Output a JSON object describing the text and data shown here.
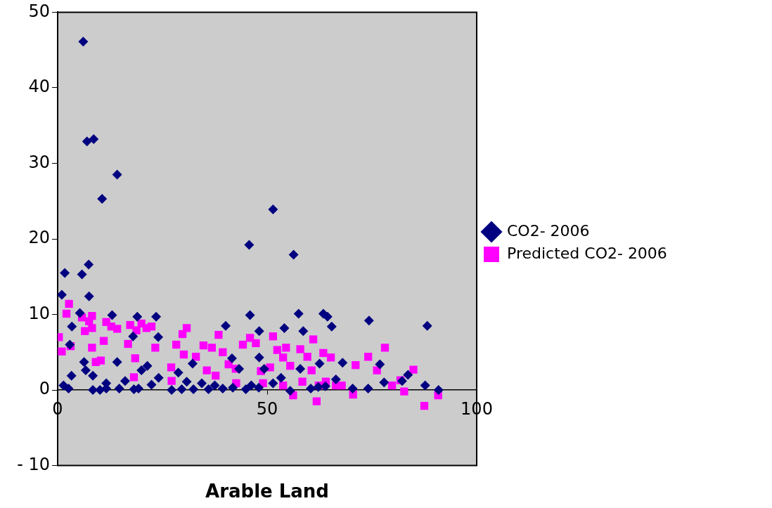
{
  "chart_data": {
    "type": "scatter",
    "xlabel": "Arable Land",
    "xlim": [
      0,
      100
    ],
    "xticks": [
      0,
      50,
      100
    ],
    "ylim": [
      -10,
      50
    ],
    "yticks": [
      -10,
      0,
      10,
      20,
      30,
      40,
      50
    ],
    "grid": false,
    "legend": "right",
    "series": [
      {
        "name": "CO2- 2006",
        "color": "#000080",
        "marker": "diamond",
        "x": [
          6.1,
          7.0,
          8.6,
          14.2,
          10.6,
          1.0,
          1.7,
          5.8,
          7.4,
          7.5,
          45.7,
          51.4,
          56.3,
          45.9,
          57.5,
          63.4,
          64.4,
          65.4,
          54.1,
          40.1,
          48.1,
          58.6,
          74.3,
          88.2,
          13.0,
          19.0,
          23.5,
          18.0,
          24.0,
          3.4,
          5.3,
          2.9,
          1.4,
          2.6,
          3.3,
          6.7,
          8.4,
          8.4,
          10.1,
          11.6,
          14.7,
          18.2,
          19.3,
          20.0,
          21.4,
          24.1,
          27.2,
          29.6,
          30.8,
          32.4,
          34.4,
          36.0,
          37.5,
          39.4,
          41.8,
          43.3,
          44.9,
          46.2,
          48.0,
          49.3,
          51.4,
          53.3,
          55.5,
          57.9,
          60.4,
          62.2,
          63.9,
          66.4,
          68.0,
          70.4,
          74.1,
          76.9,
          77.9,
          83.6,
          87.7,
          90.9,
          82.2,
          41.6,
          48.1,
          62.5,
          32.2,
          28.8,
          22.4,
          11.6,
          16.1,
          14.2,
          6.3
        ],
        "values": [
          46.1,
          32.9,
          33.2,
          28.5,
          25.3,
          12.6,
          15.5,
          15.3,
          16.6,
          12.4,
          19.2,
          23.9,
          17.9,
          9.9,
          10.1,
          10.1,
          9.7,
          8.4,
          8.2,
          8.5,
          7.8,
          7.8,
          9.2,
          8.5,
          9.9,
          9.7,
          9.7,
          7.1,
          7.0,
          8.4,
          10.2,
          6.0,
          0.6,
          0.2,
          1.9,
          2.6,
          1.9,
          0,
          0,
          0.2,
          0.2,
          0.1,
          0.2,
          2.6,
          3.2,
          1.6,
          0,
          0.1,
          1.1,
          0.1,
          0.9,
          0.1,
          0.6,
          0.2,
          0.3,
          2.8,
          0.1,
          0.6,
          0.3,
          2.8,
          0.9,
          1.6,
          -0.1,
          2.8,
          0.2,
          0.4,
          0.5,
          1.4,
          3.6,
          0.2,
          0.2,
          3.4,
          1.0,
          2.0,
          0.6,
          0.0,
          1.2,
          4.2,
          4.3,
          3.5,
          3.5,
          2.3,
          0.7,
          0.9,
          1.2,
          3.7,
          3.7
        ]
      },
      {
        "name": "Predicted CO2- 2006",
        "color": "#ff00ff",
        "marker": "square",
        "x": [
          0.3,
          1.0,
          2.1,
          2.7,
          3.1,
          5.8,
          6.5,
          7.5,
          8.2,
          8.2,
          8.2,
          9.1,
          10.3,
          11.0,
          11.6,
          12.8,
          14.2,
          16.8,
          17.3,
          18.5,
          18.8,
          20.0,
          21.2,
          22.4,
          23.3,
          18.2,
          27.1,
          27.2,
          28.3,
          29.8,
          30.8,
          30.1,
          33.0,
          34.8,
          35.6,
          36.8,
          38.4,
          39.4,
          40.8,
          42.5,
          44.2,
          45.9,
          47.3,
          48.5,
          50.7,
          51.4,
          52.4,
          53.8,
          54.5,
          55.5,
          56.2,
          57.9,
          59.6,
          60.6,
          61.0,
          61.8,
          63.4,
          64.0,
          65.2,
          66.4,
          67.8,
          70.5,
          71.1,
          74.1,
          76.2,
          78.1,
          79.8,
          81.8,
          82.7,
          84.9,
          87.5,
          90.8,
          58.4,
          62.3,
          53.8,
          49.0,
          42.6,
          37.7
        ],
        "values": [
          7.0,
          5.1,
          10.1,
          11.4,
          5.8,
          9.6,
          7.8,
          9.1,
          9.8,
          8.2,
          5.6,
          3.7,
          3.9,
          6.5,
          9.0,
          8.4,
          8.1,
          6.1,
          8.6,
          4.2,
          7.9,
          8.8,
          8.2,
          8.4,
          5.6,
          1.7,
          3.0,
          1.2,
          6.0,
          7.4,
          8.2,
          4.7,
          4.4,
          5.9,
          2.6,
          5.6,
          7.3,
          5.0,
          3.4,
          2.8,
          6.0,
          6.9,
          6.2,
          2.5,
          3.0,
          7.1,
          5.3,
          4.3,
          5.6,
          3.2,
          -0.7,
          5.4,
          4.4,
          2.6,
          6.7,
          -1.5,
          4.9,
          1.1,
          4.3,
          0.6,
          0.6,
          -0.6,
          3.3,
          4.4,
          2.6,
          5.6,
          0.6,
          1.3,
          -0.2,
          2.7,
          -2.1,
          -0.7,
          1.1,
          0.6,
          0.6,
          0.9,
          0.9,
          1.9
        ]
      }
    ]
  }
}
